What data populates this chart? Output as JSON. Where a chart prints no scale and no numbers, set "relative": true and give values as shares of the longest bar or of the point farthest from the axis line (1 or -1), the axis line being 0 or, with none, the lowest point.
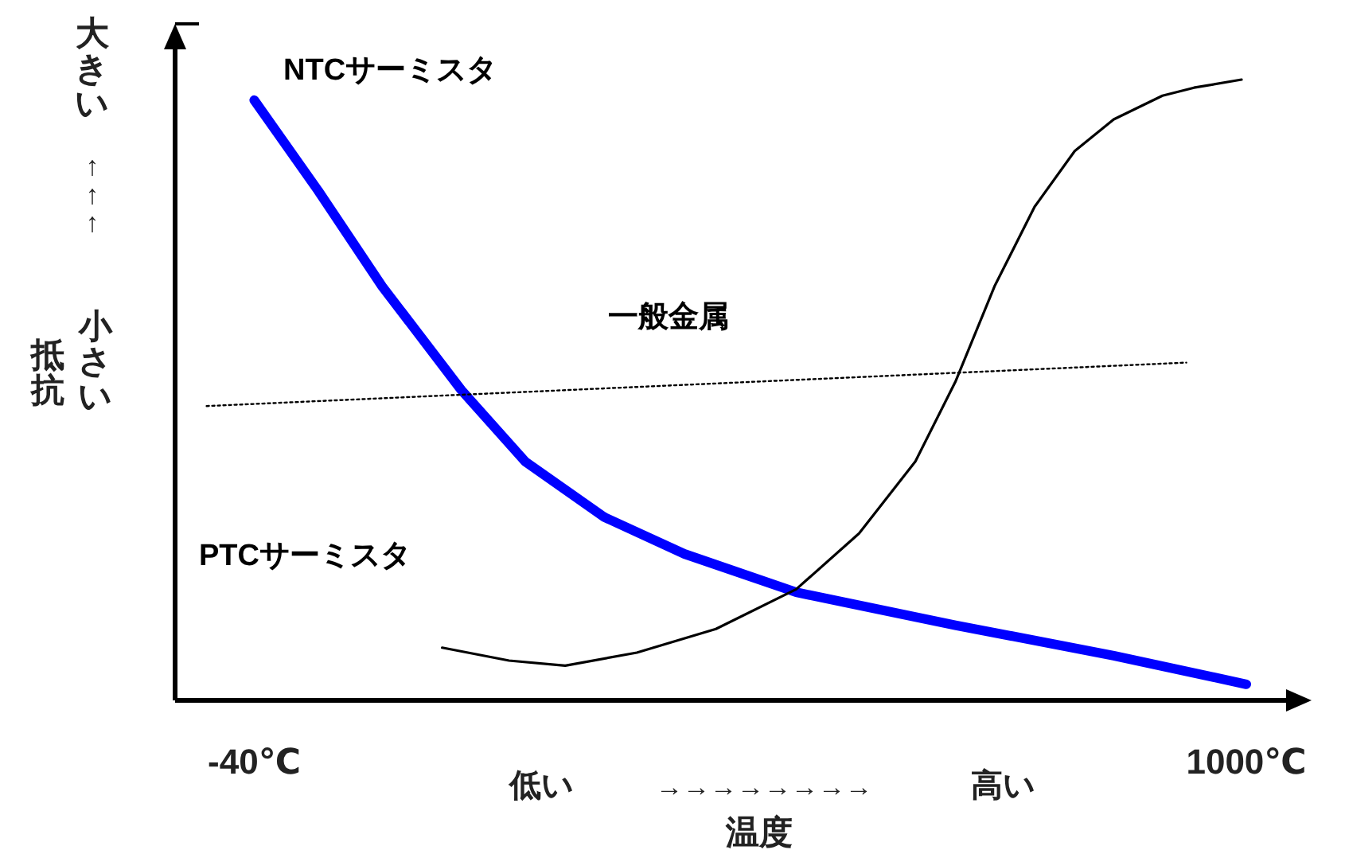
{
  "chart_data": {
    "type": "line",
    "relative": true,
    "xlabel": "温度",
    "ylabel": "抵抗",
    "annotations": [
      "大きい",
      "↑↑↑",
      "小さい",
      "低い",
      "→→→→→→→→",
      "高い"
    ],
    "xlim": [
      -123,
      1045
    ],
    "xticks": [
      {
        "value": -40,
        "label": "-40℃"
      },
      {
        "value": 1000,
        "label": "1000℃"
      }
    ],
    "tick_labels": "x",
    "series": [
      {
        "name": "NTCサーミスタ",
        "color": "#0000ff",
        "line_style": "solid",
        "x": [
          -40,
          27,
          94,
          177,
          244,
          327,
          411,
          528,
          695,
          861,
          1000
        ],
        "values": [
          0.967,
          0.821,
          0.667,
          0.5,
          0.385,
          0.295,
          0.236,
          0.174,
          0.121,
          0.072,
          0.026
        ]
      },
      {
        "name": "PTCサーミスタ",
        "color": "#000000",
        "line_style": "solid",
        "x": [
          157,
          227,
          286,
          361,
          444,
          528,
          594,
          653,
          695,
          736,
          778,
          820,
          861,
          912,
          945,
          995
        ],
        "values": [
          0.085,
          0.064,
          0.056,
          0.077,
          0.115,
          0.179,
          0.269,
          0.385,
          0.513,
          0.667,
          0.795,
          0.885,
          0.936,
          0.974,
          0.987,
          1
        ]
      },
      {
        "name": "一般金属",
        "color": "#000000",
        "line_style": "dotted",
        "x": [
          -90,
          937
        ],
        "values": [
          0.474,
          0.544
        ]
      }
    ]
  }
}
